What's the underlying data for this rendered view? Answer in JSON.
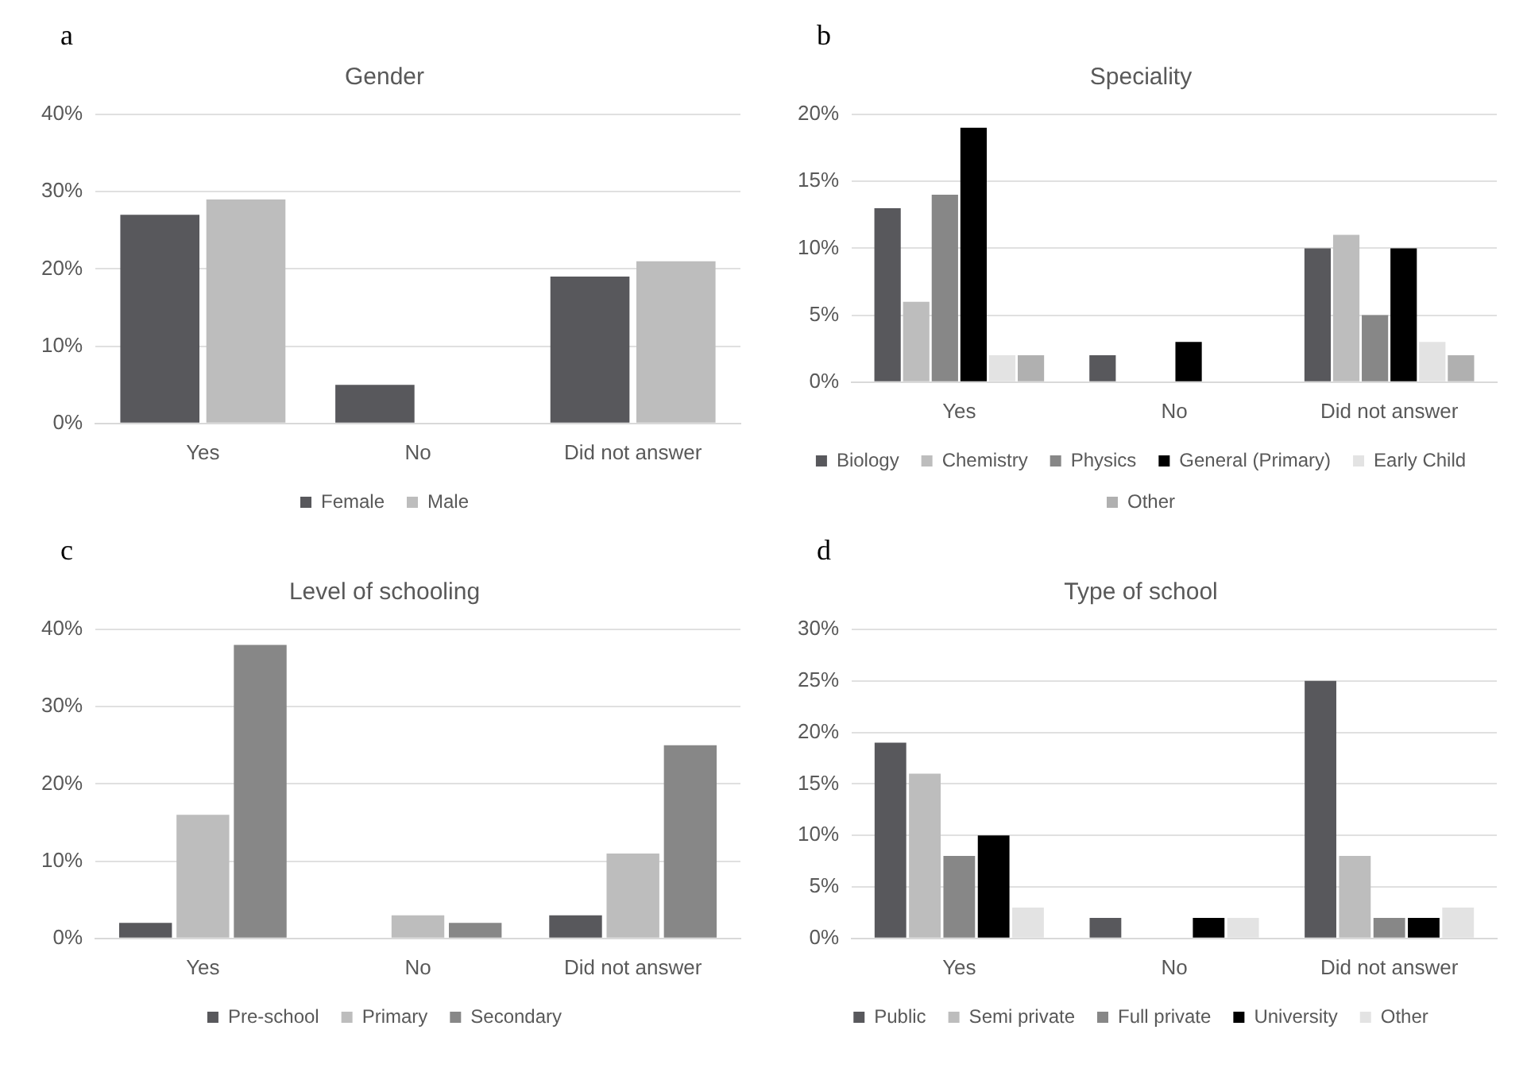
{
  "chart_data": [
    {
      "type": "bar",
      "title": "Gender",
      "annotations": [
        "a"
      ],
      "categories": [
        "Yes",
        "No",
        "Did not answer"
      ],
      "series": [
        {
          "name": "Female",
          "color": "#58585c",
          "values": [
            27,
            5,
            19
          ]
        },
        {
          "name": "Male",
          "color": "#bdbdbd",
          "values": [
            29,
            0,
            21
          ]
        }
      ],
      "ylim": [
        0,
        40
      ],
      "yticks": [
        {
          "value": 0,
          "label": "0%"
        },
        {
          "value": 10,
          "label": "10%"
        },
        {
          "value": 20,
          "label": "20%"
        },
        {
          "value": 30,
          "label": "30%"
        },
        {
          "value": 40,
          "label": "40%"
        }
      ],
      "grid": "y",
      "legend": "bottom"
    },
    {
      "type": "bar",
      "title": "Speciality",
      "annotations": [
        "b"
      ],
      "categories": [
        "Yes",
        "No",
        "Did not answer"
      ],
      "series": [
        {
          "name": "Biology",
          "color": "#58585c",
          "values": [
            13,
            2,
            10
          ]
        },
        {
          "name": "Chemistry",
          "color": "#bdbdbd",
          "values": [
            6,
            0,
            11
          ]
        },
        {
          "name": "Physics",
          "color": "#878787",
          "values": [
            14,
            0,
            5
          ]
        },
        {
          "name": "General (Primary)",
          "color": "#000000",
          "values": [
            19,
            3,
            10
          ]
        },
        {
          "name": "Early Child",
          "color": "#e3e3e3",
          "values": [
            2,
            0,
            3
          ]
        },
        {
          "name": "Other",
          "color": "#b0b0b0",
          "values": [
            2,
            0,
            2
          ]
        }
      ],
      "ylim": [
        0,
        20
      ],
      "yticks": [
        {
          "value": 0,
          "label": "0%"
        },
        {
          "value": 5,
          "label": "5%"
        },
        {
          "value": 10,
          "label": "10%"
        },
        {
          "value": 15,
          "label": "15%"
        },
        {
          "value": 20,
          "label": "20%"
        }
      ],
      "grid": "y",
      "legend": "bottom"
    },
    {
      "type": "bar",
      "title": "Level of schooling",
      "annotations": [
        "c"
      ],
      "categories": [
        "Yes",
        "No",
        "Did not answer"
      ],
      "series": [
        {
          "name": "Pre-school",
          "color": "#58585c",
          "values": [
            2,
            0,
            3
          ]
        },
        {
          "name": "Primary",
          "color": "#bdbdbd",
          "values": [
            16,
            3,
            11
          ]
        },
        {
          "name": "Secondary",
          "color": "#878787",
          "values": [
            38,
            2,
            25
          ]
        }
      ],
      "ylim": [
        0,
        40
      ],
      "yticks": [
        {
          "value": 0,
          "label": "0%"
        },
        {
          "value": 10,
          "label": "10%"
        },
        {
          "value": 20,
          "label": "20%"
        },
        {
          "value": 30,
          "label": "30%"
        },
        {
          "value": 40,
          "label": "40%"
        }
      ],
      "grid": "y",
      "legend": "bottom"
    },
    {
      "type": "bar",
      "title": "Type of school",
      "annotations": [
        "d"
      ],
      "categories": [
        "Yes",
        "No",
        "Did not answer"
      ],
      "series": [
        {
          "name": "Public",
          "color": "#58585c",
          "values": [
            19,
            2,
            25
          ]
        },
        {
          "name": "Semi private",
          "color": "#bdbdbd",
          "values": [
            16,
            0,
            8
          ]
        },
        {
          "name": "Full private",
          "color": "#878787",
          "values": [
            8,
            0,
            2
          ]
        },
        {
          "name": "University",
          "color": "#000000",
          "values": [
            10,
            2,
            2
          ]
        },
        {
          "name": "Other",
          "color": "#e3e3e3",
          "values": [
            3,
            2,
            3
          ]
        }
      ],
      "ylim": [
        0,
        30
      ],
      "yticks": [
        {
          "value": 0,
          "label": "0%"
        },
        {
          "value": 5,
          "label": "5%"
        },
        {
          "value": 10,
          "label": "10%"
        },
        {
          "value": 15,
          "label": "15%"
        },
        {
          "value": 20,
          "label": "20%"
        },
        {
          "value": 25,
          "label": "25%"
        },
        {
          "value": 30,
          "label": "30%"
        }
      ],
      "grid": "y",
      "legend": "bottom"
    }
  ]
}
